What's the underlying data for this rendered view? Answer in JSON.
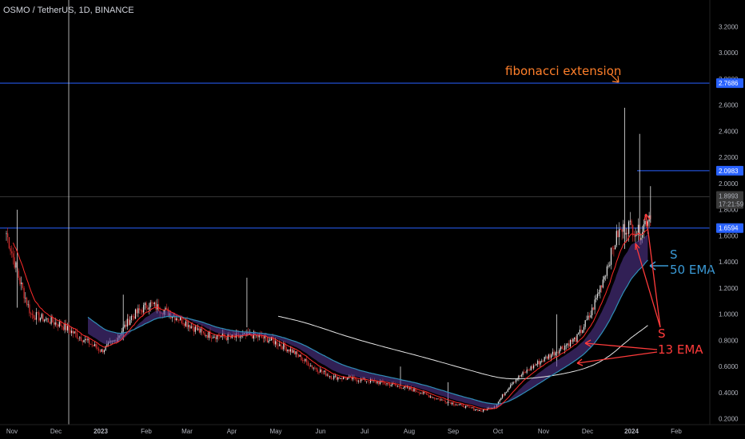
{
  "header": {
    "symbol_title": "OSMO / TetherUS, 1D, BINANCE"
  },
  "price_scale": {
    "ticks": [
      "3.2000",
      "3.0000",
      "2.8000",
      "2.6000",
      "2.4000",
      "2.2000",
      "2.0000",
      "1.8000",
      "1.6000",
      "1.4000",
      "1.2000",
      "1.0000",
      "0.8000",
      "0.6000",
      "0.4000",
      "0.2000"
    ],
    "current_price": "1.8993",
    "countdown": "17:21:59"
  },
  "time_axis": {
    "ticks": [
      "Nov",
      "Dec",
      "2023",
      "Feb",
      "Mar",
      "Apr",
      "May",
      "Jun",
      "Jul",
      "Aug",
      "Sep",
      "Oct",
      "Nov",
      "Dec",
      "2024",
      "Feb"
    ]
  },
  "levels": [
    {
      "price": 2.7686,
      "label": "2.7686"
    },
    {
      "price": 2.0983,
      "label": "2.0983"
    },
    {
      "price": 1.6594,
      "label": "1.6594"
    }
  ],
  "annotations": {
    "fib_label": "fibonacci extension",
    "s_blue": "S",
    "ema50_label": "50 EMA",
    "s_red": "S",
    "ema13_label": "13 EMA"
  },
  "colors": {
    "background": "#000000",
    "level_line": "#2962ff",
    "level_tag": "#2962ff",
    "candle_up": "#e8e8e8",
    "candle_down": "#e03030",
    "ema13": "#ff2a2a",
    "ema50": "#2f8fb8",
    "ema_ribbon": "#5a3a9a",
    "white_ma": "#e6e6e6",
    "fib_annotation": "#ff7f2a",
    "ema50_annotation": "#3a9ad6",
    "ema13_annotation": "#ff3b3b"
  },
  "chart_data": {
    "type": "candlestick",
    "title": "OSMO / TetherUS, 1D, BINANCE",
    "y_range": [
      0.2,
      3.2
    ],
    "x_ticks": [
      "Nov",
      "Dec",
      "2023",
      "Feb",
      "Mar",
      "Apr",
      "May",
      "Jun",
      "Jul",
      "Aug",
      "Sep",
      "Oct",
      "Nov",
      "Dec",
      "2024",
      "Feb"
    ],
    "price_path": [
      [
        "2022-11",
        1.62
      ],
      [
        "2022-11-late",
        1.0
      ],
      [
        "2022-12",
        0.95
      ],
      [
        "2022-12-late",
        0.75
      ],
      [
        "2023-01",
        0.78
      ],
      [
        "2023-01-late",
        0.95
      ],
      [
        "2023-02",
        1.12
      ],
      [
        "2023-03",
        0.98
      ],
      [
        "2023-04",
        0.82
      ],
      [
        "2023-04-late",
        0.86
      ],
      [
        "2023-05",
        0.78
      ],
      [
        "2023-06",
        0.6
      ],
      [
        "2023-07",
        0.5
      ],
      [
        "2023-08",
        0.46
      ],
      [
        "2023-09",
        0.32
      ],
      [
        "2023-10",
        0.27
      ],
      [
        "2023-11",
        0.55
      ],
      [
        "2023-12",
        0.85
      ],
      [
        "2023-12-late",
        1.6
      ],
      [
        "2024-01",
        1.95
      ]
    ],
    "horizontal_levels": [
      2.7686,
      2.0983,
      1.6594
    ],
    "last_price": 1.8993,
    "series": [
      {
        "name": "13 EMA"
      },
      {
        "name": "50 EMA"
      }
    ]
  }
}
